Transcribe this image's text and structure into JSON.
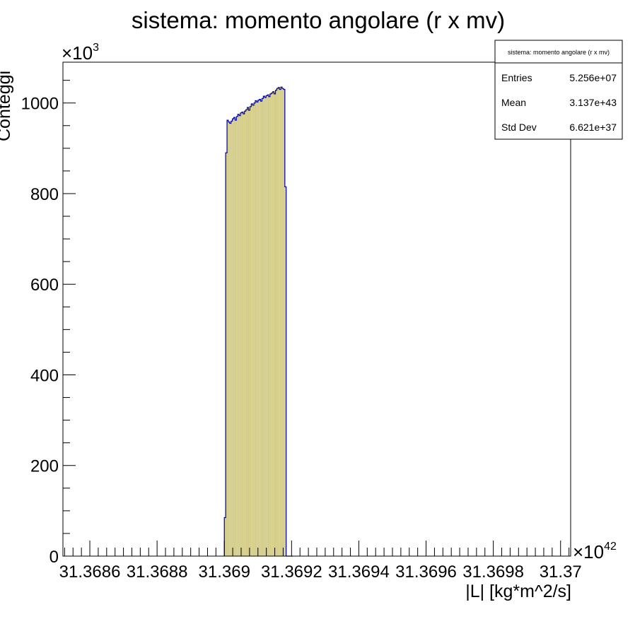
{
  "chart_data": {
    "type": "bar",
    "title": "sistema: momento angolare (r x mv)",
    "xlabel": "|L| [kg*m^2/s]",
    "ylabel": "Conteggi",
    "x_exponent_label": "×10",
    "x_exponent_power": "42",
    "y_exponent_label": "×10",
    "y_exponent_power": "3",
    "xlim": [
      31.36852,
      31.37003
    ],
    "ylim": [
      0,
      1090
    ],
    "x_tick_labels": [
      {
        "value": 31.3686,
        "label": "31.3686"
      },
      {
        "value": 31.3688,
        "label": "31.3688"
      },
      {
        "value": 31.369,
        "label": "31.369"
      },
      {
        "value": 31.3692,
        "label": "31.3692"
      },
      {
        "value": 31.3694,
        "label": "31.3694"
      },
      {
        "value": 31.3696,
        "label": "31.3696"
      },
      {
        "value": 31.3698,
        "label": "31.3698"
      },
      {
        "value": 31.37,
        "label": "31.37"
      }
    ],
    "y_tick_labels": [
      {
        "value": 0,
        "label": "0"
      },
      {
        "value": 200,
        "label": "200"
      },
      {
        "value": 400,
        "label": "400"
      },
      {
        "value": 600,
        "label": "600"
      },
      {
        "value": 800,
        "label": "800"
      },
      {
        "value": 1000,
        "label": "1000"
      }
    ],
    "bin_width": 4e-06,
    "bins_x_start": [
      31.369,
      31.369004,
      31.369008,
      31.369012,
      31.369016,
      31.36902,
      31.369024,
      31.369028,
      31.369032,
      31.369036,
      31.36904,
      31.369044,
      31.369048,
      31.369052,
      31.369056,
      31.36906,
      31.369064,
      31.369068,
      31.369072,
      31.369076,
      31.36908,
      31.369084,
      31.369088,
      31.369092,
      31.369096,
      31.3691,
      31.369104,
      31.369108,
      31.369112,
      31.369116,
      31.36912,
      31.369124,
      31.369128,
      31.369132,
      31.369136,
      31.36914,
      31.369144,
      31.369148,
      31.369152,
      31.369156,
      31.36916,
      31.369164,
      31.369168,
      31.369172,
      31.369176,
      31.36918,
      31.369184,
      31.369188,
      31.369192,
      31.369196,
      31.3692
    ],
    "values": [
      85,
      890,
      962,
      958,
      955,
      960,
      965,
      968,
      962,
      970,
      975,
      972,
      978,
      980,
      976,
      982,
      985,
      990,
      984,
      992,
      998,
      995,
      1000,
      1005,
      1002,
      1006,
      1008,
      1004,
      1010,
      1015,
      1012,
      1016,
      1018,
      1014,
      1020,
      1022,
      1025,
      1020,
      1028,
      1032,
      1034,
      1030,
      1035,
      1032,
      1030,
      815,
      0,
      0,
      0,
      0,
      0
    ],
    "fill_color": "#d5ce8b",
    "line_color": "#000099",
    "grid": false,
    "legend": "none",
    "stats_box": {
      "title": "sistema: momento angolare (r x mv)",
      "entries_label": "Entries",
      "entries_value": "5.256e+07",
      "mean_label": "Mean",
      "mean_value": "3.137e+43",
      "stddev_label": "Std Dev",
      "stddev_value": "6.621e+37",
      "placement": "top-right"
    }
  }
}
